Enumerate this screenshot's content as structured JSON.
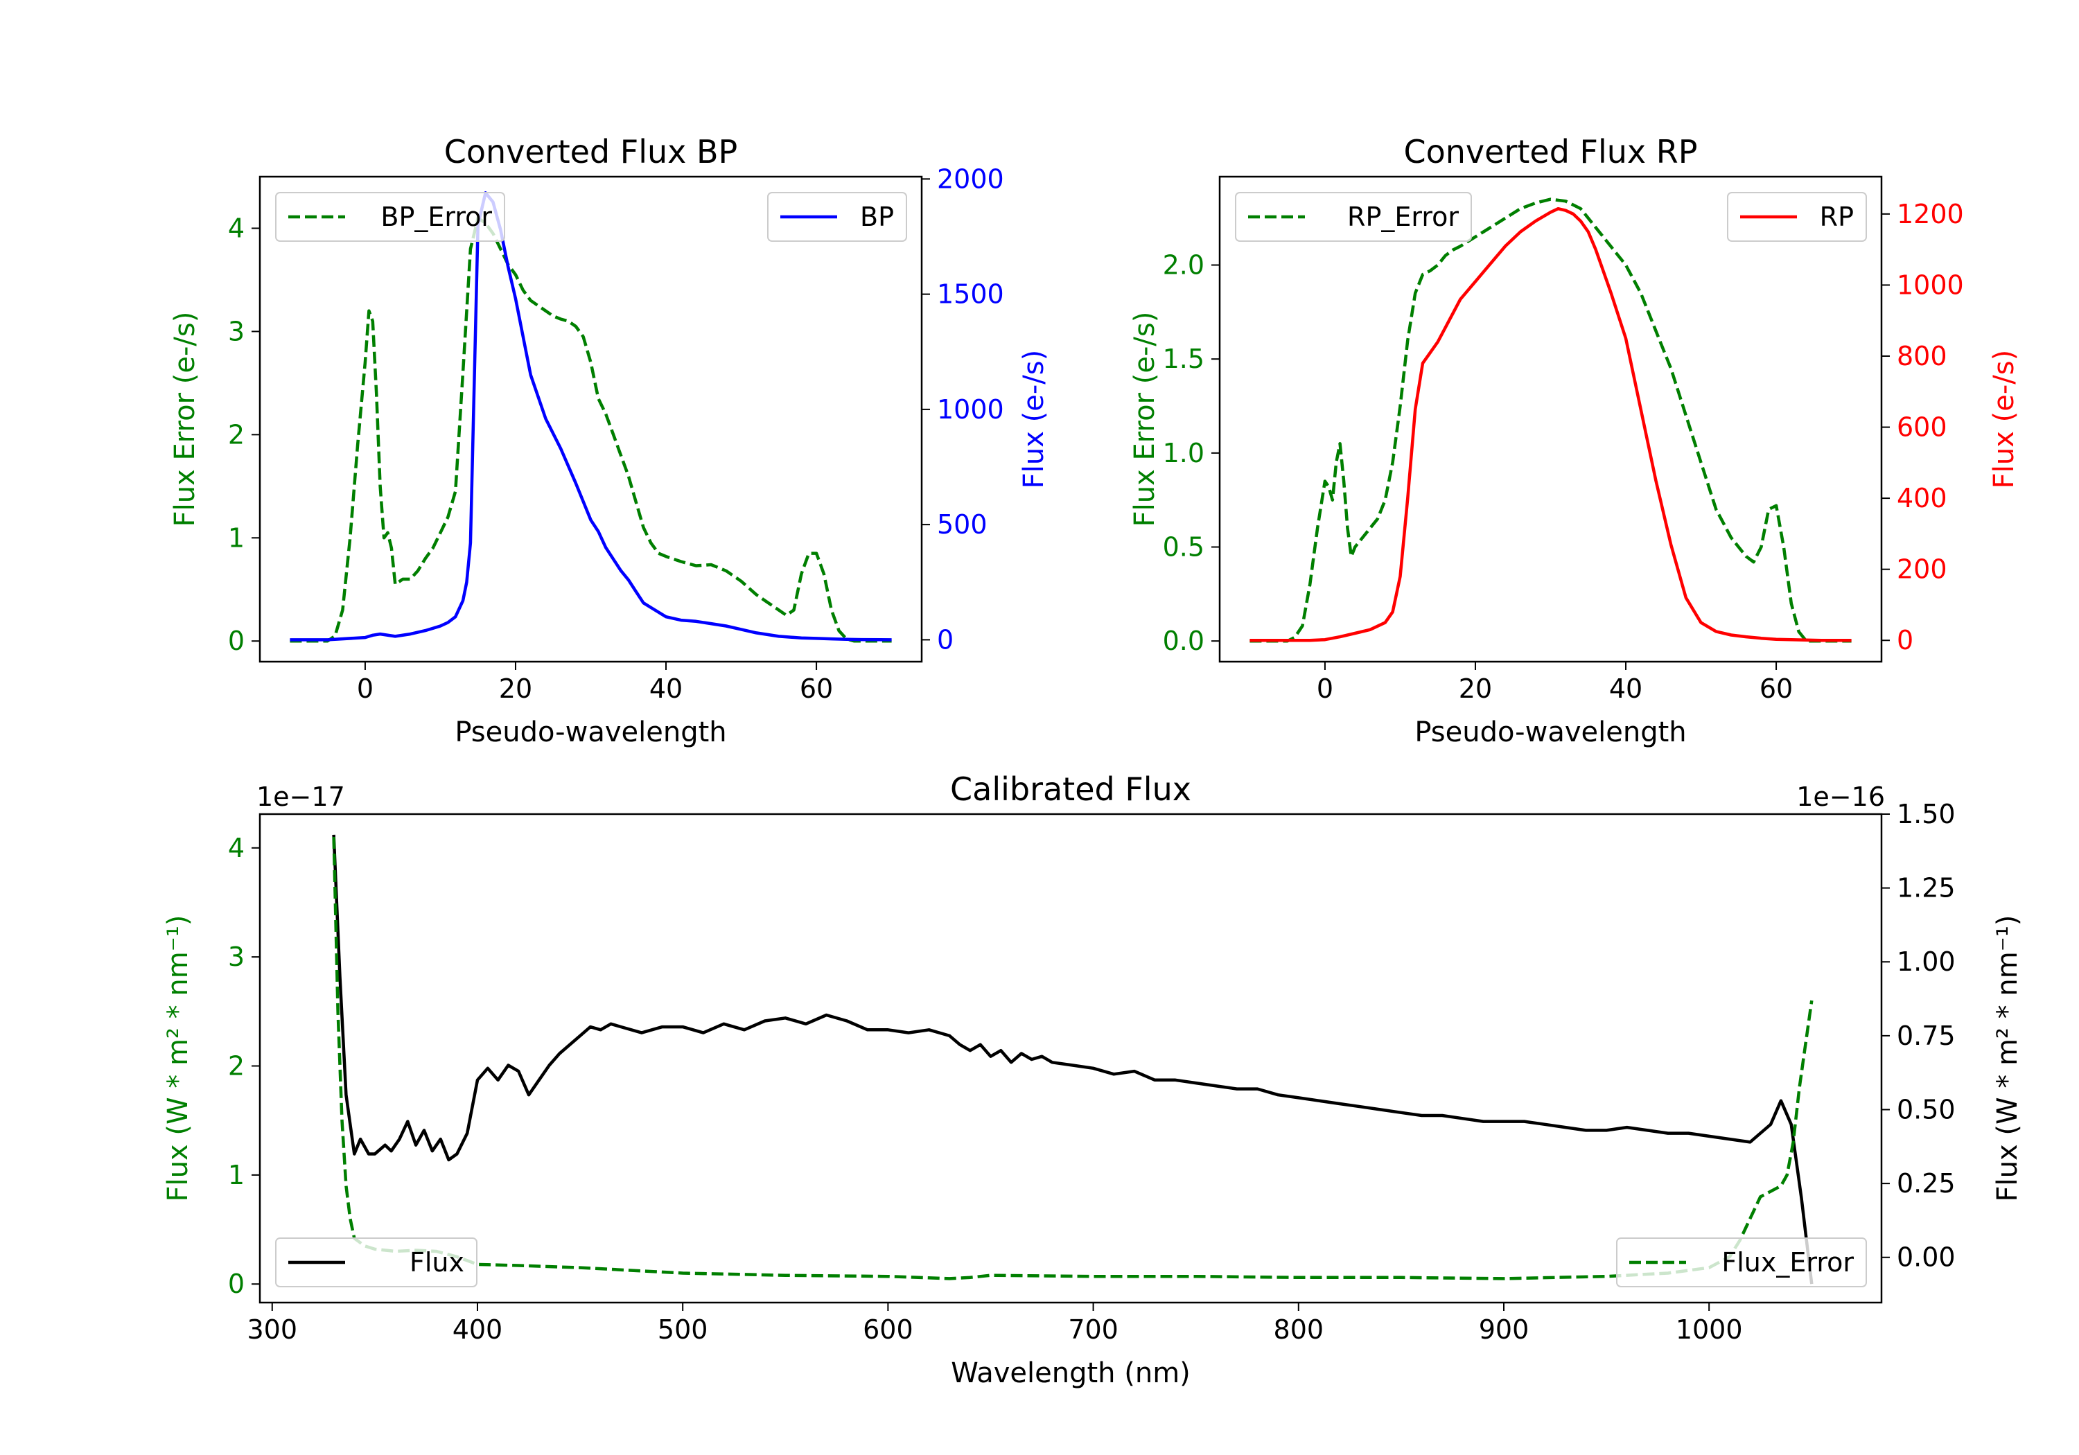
{
  "colors": {
    "bp": "#0000ff",
    "rp": "#ff0000",
    "error": "#007f00",
    "flux": "#000000",
    "axis": "#000000"
  },
  "chart_data": [
    {
      "id": "bp",
      "type": "line",
      "title": "Converted Flux BP",
      "xlabel": "Pseudo-wavelength",
      "ylabel_left": "Flux Error (e-/s)",
      "ylabel_right": "Flux (e-/s)",
      "xlim": [
        -14,
        74
      ],
      "ylim_left": [
        -0.2,
        4.5
      ],
      "ylim_right": [
        -95,
        2010
      ],
      "xticks": [
        "0",
        "20",
        "40",
        "60"
      ],
      "xtick_values": [
        0,
        20,
        40,
        60
      ],
      "yticks_left": [
        "0",
        "1",
        "2",
        "3",
        "4"
      ],
      "ytick_values_left": [
        0,
        1,
        2,
        3,
        4
      ],
      "yticks_right": [
        "0",
        "500",
        "1000",
        "1500",
        "2000"
      ],
      "ytick_values_right": [
        0,
        500,
        1000,
        1500,
        2000
      ],
      "legend_left": "BP_Error",
      "legend_right": "BP",
      "series": [
        {
          "name": "BP_Error",
          "axis": "left",
          "style": "dashed",
          "x": [
            -10,
            -5,
            -4,
            -3,
            -2,
            -1,
            0,
            0.5,
            1,
            1.5,
            2,
            2.5,
            3,
            3.5,
            4,
            5,
            6,
            7,
            8,
            9,
            10,
            11,
            12,
            13,
            14,
            15,
            16,
            17,
            18,
            19,
            20,
            21,
            22,
            23,
            24,
            25,
            26,
            27,
            28,
            29,
            30,
            31,
            32,
            33,
            34,
            35,
            36,
            37,
            38,
            39,
            40,
            42,
            44,
            46,
            48,
            50,
            52,
            54,
            55,
            56,
            57,
            58,
            59,
            60,
            61,
            62,
            63,
            64,
            65,
            70
          ],
          "values": [
            0,
            0,
            0.05,
            0.3,
            1.0,
            1.9,
            2.7,
            3.2,
            3.1,
            2.4,
            1.5,
            1.0,
            1.05,
            0.9,
            0.55,
            0.6,
            0.6,
            0.68,
            0.8,
            0.9,
            1.05,
            1.2,
            1.45,
            2.6,
            3.8,
            4.1,
            4.05,
            3.95,
            3.8,
            3.65,
            3.55,
            3.4,
            3.3,
            3.25,
            3.2,
            3.15,
            3.12,
            3.1,
            3.05,
            2.95,
            2.7,
            2.35,
            2.2,
            2.0,
            1.8,
            1.6,
            1.35,
            1.1,
            0.95,
            0.85,
            0.82,
            0.77,
            0.73,
            0.74,
            0.68,
            0.58,
            0.45,
            0.35,
            0.3,
            0.25,
            0.3,
            0.65,
            0.85,
            0.85,
            0.65,
            0.3,
            0.1,
            0.02,
            0,
            0
          ]
        },
        {
          "name": "BP",
          "axis": "right",
          "style": "solid",
          "x": [
            -10,
            -5,
            0,
            1,
            2,
            4,
            6,
            8,
            10,
            11,
            12,
            13,
            13.5,
            14,
            15,
            16,
            17,
            18,
            19,
            20,
            22,
            24,
            26,
            28,
            30,
            31,
            32,
            34,
            35,
            36,
            37,
            38,
            40,
            42,
            44,
            46,
            48,
            50,
            52,
            55,
            58,
            60,
            62,
            64,
            66,
            70
          ],
          "values": [
            0,
            0,
            10,
            20,
            25,
            15,
            25,
            40,
            60,
            75,
            100,
            170,
            250,
            420,
            1800,
            1940,
            1900,
            1780,
            1620,
            1480,
            1150,
            960,
            830,
            680,
            520,
            470,
            400,
            300,
            260,
            210,
            160,
            140,
            100,
            85,
            80,
            70,
            60,
            45,
            30,
            15,
            8,
            6,
            4,
            2,
            1,
            0
          ]
        }
      ]
    },
    {
      "id": "rp",
      "type": "line",
      "title": "Converted Flux RP",
      "xlabel": "Pseudo-wavelength",
      "ylabel_left": "Flux Error (e-/s)",
      "ylabel_right": "Flux (e-/s)",
      "xlim": [
        -14,
        74
      ],
      "ylim_left": [
        -0.11,
        2.47
      ],
      "ylim_right": [
        -60,
        1305
      ],
      "xticks": [
        "0",
        "20",
        "40",
        "60"
      ],
      "xtick_values": [
        0,
        20,
        40,
        60
      ],
      "yticks_left": [
        "0.0",
        "0.5",
        "1.0",
        "1.5",
        "2.0"
      ],
      "ytick_values_left": [
        0,
        0.5,
        1,
        1.5,
        2
      ],
      "yticks_right": [
        "0",
        "200",
        "400",
        "600",
        "800",
        "1000",
        "1200"
      ],
      "ytick_values_right": [
        0,
        200,
        400,
        600,
        800,
        1000,
        1200
      ],
      "legend_left": "RP_Error",
      "legend_right": "RP",
      "series": [
        {
          "name": "RP_Error",
          "axis": "left",
          "style": "dashed",
          "x": [
            -10,
            -5,
            -4,
            -3,
            -2,
            -1,
            0,
            0.5,
            1,
            1.5,
            2,
            2.5,
            3,
            3.5,
            4,
            5,
            6,
            7,
            8,
            9,
            10,
            11,
            12,
            13,
            14,
            15,
            16,
            17,
            18,
            20,
            22,
            24,
            26,
            28,
            30,
            32,
            34,
            36,
            38,
            40,
            42,
            44,
            46,
            48,
            50,
            52,
            54,
            55,
            56,
            57,
            58,
            59,
            60,
            61,
            62,
            63,
            64,
            70
          ],
          "values": [
            0,
            0,
            0.02,
            0.08,
            0.3,
            0.6,
            0.85,
            0.82,
            0.75,
            0.95,
            1.05,
            0.85,
            0.6,
            0.45,
            0.5,
            0.55,
            0.6,
            0.65,
            0.75,
            0.95,
            1.25,
            1.6,
            1.85,
            1.95,
            1.97,
            2.0,
            2.05,
            2.08,
            2.1,
            2.15,
            2.2,
            2.25,
            2.3,
            2.33,
            2.35,
            2.34,
            2.3,
            2.2,
            2.1,
            2.0,
            1.85,
            1.65,
            1.45,
            1.2,
            0.95,
            0.7,
            0.55,
            0.5,
            0.45,
            0.42,
            0.5,
            0.7,
            0.72,
            0.5,
            0.2,
            0.05,
            0,
            0
          ]
        },
        {
          "name": "RP",
          "axis": "right",
          "style": "solid",
          "x": [
            -10,
            -5,
            -2,
            0,
            2,
            4,
            6,
            8,
            9,
            10,
            11,
            12,
            13,
            14,
            15,
            16,
            18,
            20,
            22,
            24,
            26,
            28,
            30,
            31,
            32,
            33,
            34,
            35,
            36,
            38,
            40,
            42,
            44,
            46,
            48,
            50,
            52,
            54,
            56,
            58,
            60,
            62,
            64,
            66,
            70
          ],
          "values": [
            0,
            0,
            0,
            2,
            10,
            20,
            30,
            50,
            80,
            180,
            400,
            650,
            780,
            810,
            840,
            880,
            960,
            1010,
            1060,
            1110,
            1150,
            1180,
            1205,
            1215,
            1210,
            1200,
            1180,
            1150,
            1100,
            980,
            850,
            650,
            450,
            270,
            120,
            50,
            25,
            15,
            10,
            6,
            3,
            2,
            1,
            0,
            0
          ]
        }
      ]
    },
    {
      "id": "calibrated",
      "type": "line",
      "title": "Calibrated Flux",
      "xlabel": "Wavelength (nm)",
      "ylabel_left": "Flux (W * m² * nm⁻¹)",
      "ylabel_right": "Flux (W * m² * nm⁻¹)",
      "offset_left": "1e−17",
      "offset_right": "1e−16",
      "xlim": [
        294,
        1084
      ],
      "ylim_left": [
        -0.17,
        4.31
      ],
      "ylim_right": [
        -0.153,
        1.5
      ],
      "xticks": [
        "300",
        "400",
        "500",
        "600",
        "700",
        "800",
        "900",
        "1000"
      ],
      "xtick_values": [
        300,
        400,
        500,
        600,
        700,
        800,
        900,
        1000
      ],
      "yticks_left": [
        "0",
        "1",
        "2",
        "3",
        "4"
      ],
      "ytick_values_left": [
        0,
        1,
        2,
        3,
        4
      ],
      "yticks_right": [
        "0.00",
        "0.25",
        "0.50",
        "0.75",
        "1.00",
        "1.25",
        "1.50"
      ],
      "ytick_values_right": [
        0,
        0.25,
        0.5,
        0.75,
        1.0,
        1.25,
        1.5
      ],
      "legend_left": "Flux",
      "legend_right": "Flux_Error",
      "series": [
        {
          "name": "Flux",
          "axis": "right",
          "style": "solid",
          "x": [
            330,
            333,
            336,
            340,
            343,
            347,
            350,
            355,
            358,
            362,
            366,
            370,
            374,
            378,
            382,
            386,
            390,
            395,
            400,
            405,
            410,
            415,
            420,
            425,
            430,
            435,
            440,
            450,
            455,
            460,
            465,
            470,
            480,
            490,
            500,
            510,
            520,
            530,
            540,
            550,
            560,
            570,
            580,
            590,
            600,
            610,
            620,
            630,
            635,
            640,
            645,
            650,
            655,
            660,
            665,
            670,
            675,
            680,
            690,
            700,
            710,
            720,
            730,
            740,
            750,
            760,
            770,
            780,
            790,
            800,
            810,
            820,
            830,
            840,
            850,
            860,
            870,
            880,
            890,
            900,
            910,
            920,
            930,
            940,
            950,
            960,
            970,
            980,
            990,
            1000,
            1010,
            1020,
            1030,
            1035,
            1040,
            1045,
            1050
          ],
          "values": [
            1.43,
            0.95,
            0.55,
            0.35,
            0.4,
            0.35,
            0.35,
            0.38,
            0.36,
            0.4,
            0.46,
            0.38,
            0.43,
            0.36,
            0.4,
            0.33,
            0.35,
            0.42,
            0.6,
            0.64,
            0.6,
            0.65,
            0.63,
            0.55,
            0.6,
            0.65,
            0.69,
            0.75,
            0.78,
            0.77,
            0.79,
            0.78,
            0.76,
            0.78,
            0.78,
            0.76,
            0.79,
            0.77,
            0.8,
            0.81,
            0.79,
            0.82,
            0.8,
            0.77,
            0.77,
            0.76,
            0.77,
            0.75,
            0.72,
            0.7,
            0.72,
            0.68,
            0.7,
            0.66,
            0.69,
            0.67,
            0.68,
            0.66,
            0.65,
            0.64,
            0.62,
            0.63,
            0.6,
            0.6,
            0.59,
            0.58,
            0.57,
            0.57,
            0.55,
            0.54,
            0.53,
            0.52,
            0.51,
            0.5,
            0.49,
            0.48,
            0.48,
            0.47,
            0.46,
            0.46,
            0.46,
            0.45,
            0.44,
            0.43,
            0.43,
            0.44,
            0.43,
            0.42,
            0.42,
            0.41,
            0.4,
            0.39,
            0.45,
            0.53,
            0.45,
            0.2,
            -0.09
          ]
        },
        {
          "name": "Flux_Error",
          "axis": "left",
          "style": "dashed",
          "x": [
            330,
            332,
            334,
            336,
            338,
            340,
            345,
            350,
            360,
            370,
            380,
            390,
            400,
            420,
            450,
            500,
            550,
            600,
            630,
            640,
            650,
            700,
            750,
            800,
            850,
            900,
            950,
            980,
            1000,
            1010,
            1015,
            1020,
            1025,
            1030,
            1035,
            1038,
            1041,
            1044,
            1047,
            1050
          ],
          "values": [
            4.1,
            2.5,
            1.5,
            0.9,
            0.6,
            0.42,
            0.35,
            0.32,
            0.3,
            0.31,
            0.3,
            0.25,
            0.18,
            0.17,
            0.15,
            0.1,
            0.08,
            0.07,
            0.05,
            0.06,
            0.08,
            0.07,
            0.07,
            0.06,
            0.06,
            0.05,
            0.07,
            0.1,
            0.15,
            0.25,
            0.4,
            0.6,
            0.8,
            0.85,
            0.9,
            1.0,
            1.3,
            1.8,
            2.2,
            2.6
          ]
        }
      ]
    }
  ]
}
